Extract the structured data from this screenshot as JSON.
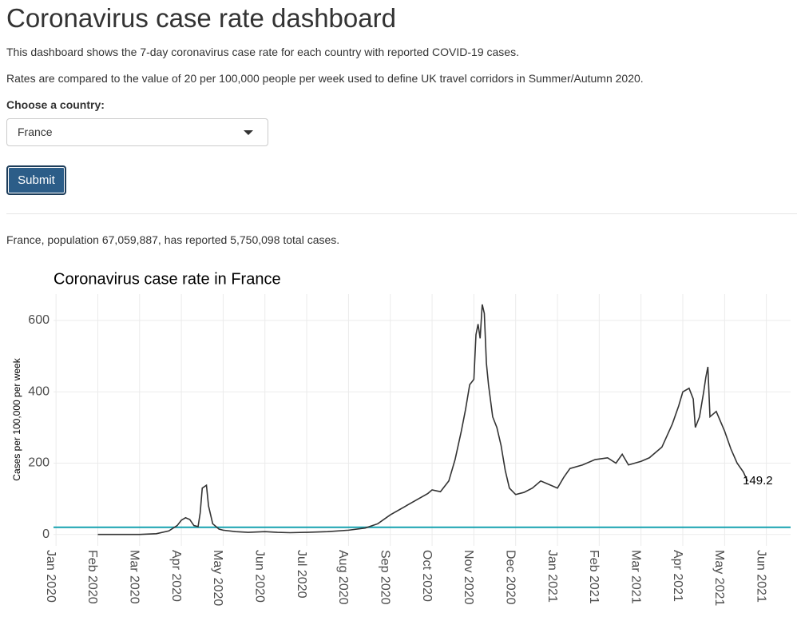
{
  "header": {
    "title": "Coronavirus case rate dashboard"
  },
  "intro": [
    "This dashboard shows the 7-day coronavirus case rate for each country with reported COVID-19 cases.",
    "Rates are compared to the value of 20 per 100,000 people per week used to define UK travel corridors in Summer/Autumn 2020."
  ],
  "form": {
    "label": "Choose a country:",
    "selected": "France",
    "button": "Submit"
  },
  "summary": "France, population 67,059,887, has reported 5,750,098 total cases.",
  "chart_data": {
    "type": "line",
    "title": "Coronavirus case rate in France",
    "y_label": "Cases per 100,000 per week",
    "xlim": [
      -0.06,
      17.58
    ],
    "ylim": [
      -32,
      674
    ],
    "grid": true,
    "xticks": [
      {
        "value": 0,
        "label": "Jan 2020"
      },
      {
        "value": 1,
        "label": "Feb 2020"
      },
      {
        "value": 2,
        "label": "Mar 2020"
      },
      {
        "value": 3,
        "label": "Apr 2020"
      },
      {
        "value": 4,
        "label": "May 2020"
      },
      {
        "value": 5,
        "label": "Jun 2020"
      },
      {
        "value": 6,
        "label": "Jul 2020"
      },
      {
        "value": 7,
        "label": "Aug 2020"
      },
      {
        "value": 8,
        "label": "Sep 2020"
      },
      {
        "value": 9,
        "label": "Oct 2020"
      },
      {
        "value": 10,
        "label": "Nov 2020"
      },
      {
        "value": 11,
        "label": "Dec 2020"
      },
      {
        "value": 12,
        "label": "Jan 2021"
      },
      {
        "value": 13,
        "label": "Feb 2021"
      },
      {
        "value": 14,
        "label": "Mar 2021"
      },
      {
        "value": 15,
        "label": "Apr 2021"
      },
      {
        "value": 16,
        "label": "May 2021"
      },
      {
        "value": 17,
        "label": "Jun 2021"
      }
    ],
    "yticks": [
      0,
      200,
      400,
      600
    ],
    "reference_line": {
      "value": 20,
      "color": "#17a2b0"
    },
    "series": [
      {
        "color": "#333333",
        "x": [
          1.0,
          1.5,
          2.0,
          2.4,
          2.7,
          2.9,
          3.0,
          3.1,
          3.2,
          3.3,
          3.4,
          3.45,
          3.5,
          3.6,
          3.65,
          3.75,
          3.9,
          4.0,
          4.3,
          4.6,
          5.0,
          5.3,
          5.6,
          6.0,
          6.5,
          7.0,
          7.4,
          7.7,
          8.0,
          8.3,
          8.6,
          8.9,
          9.0,
          9.2,
          9.4,
          9.55,
          9.7,
          9.8,
          9.9,
          10.0,
          10.05,
          10.1,
          10.15,
          10.2,
          10.25,
          10.3,
          10.35,
          10.45,
          10.55,
          10.65,
          10.75,
          10.85,
          11.0,
          11.2,
          11.4,
          11.6,
          11.8,
          12.0,
          12.15,
          12.3,
          12.6,
          12.9,
          13.2,
          13.4,
          13.55,
          13.7,
          14.0,
          14.2,
          14.5,
          14.75,
          14.9,
          15.0,
          15.15,
          15.25,
          15.3,
          15.4,
          15.5,
          15.55,
          15.6,
          15.65,
          15.8,
          16.0,
          16.15,
          16.3,
          16.45,
          16.55
        ],
        "values": [
          0,
          0,
          0,
          2,
          10,
          25,
          40,
          47,
          42,
          25,
          22,
          60,
          130,
          138,
          80,
          30,
          15,
          12,
          8,
          6,
          8,
          6,
          5,
          6,
          8,
          12,
          18,
          30,
          55,
          75,
          95,
          115,
          125,
          120,
          150,
          210,
          290,
          350,
          420,
          435,
          560,
          590,
          550,
          645,
          620,
          480,
          420,
          330,
          300,
          250,
          180,
          130,
          112,
          118,
          130,
          150,
          140,
          130,
          160,
          185,
          195,
          210,
          215,
          200,
          225,
          195,
          205,
          215,
          245,
          310,
          360,
          400,
          410,
          380,
          300,
          330,
          400,
          440,
          470,
          330,
          345,
          290,
          240,
          200,
          175,
          149.2
        ]
      }
    ]
  }
}
